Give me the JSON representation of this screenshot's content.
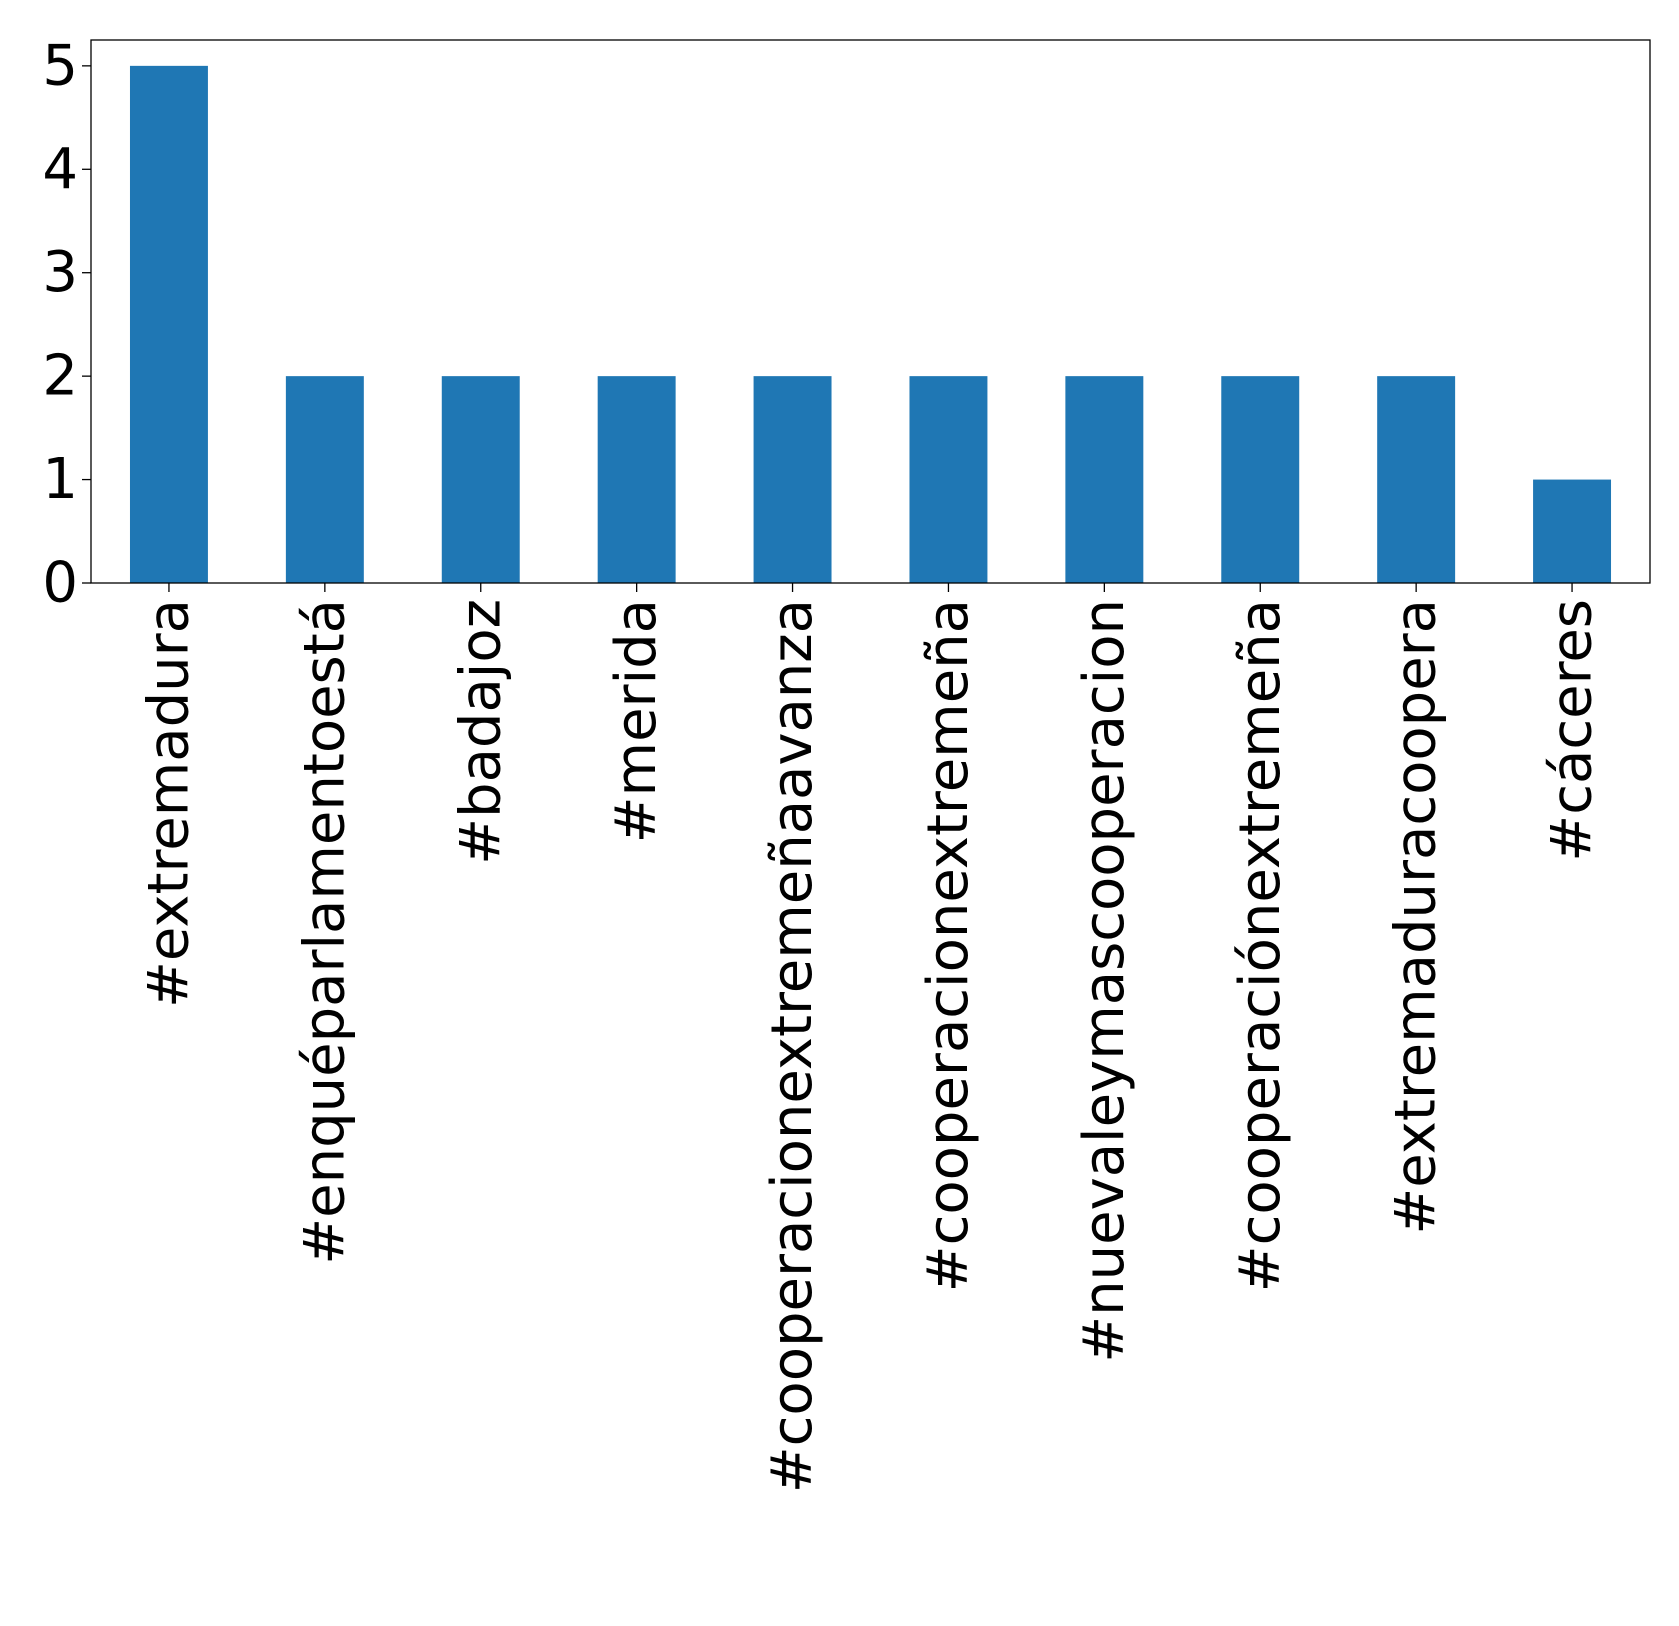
{
  "chart_data": {
    "type": "bar",
    "title": "",
    "xlabel": "",
    "ylabel": "",
    "categories": [
      "#extremadura",
      "#enquéparlamentoestá",
      "#badajoz",
      "#merida",
      "#cooperacionextremeñaavanza",
      "#cooperacionextremeña",
      "#nuevaleymascooperacion",
      "#cooperaciónextremeña",
      "#extremaduracoopera",
      "#cáceres"
    ],
    "values": [
      5,
      2,
      2,
      2,
      2,
      2,
      2,
      2,
      2,
      1
    ],
    "ylim": [
      0,
      5.25
    ],
    "yticks": [
      0,
      1,
      2,
      3,
      4,
      5
    ],
    "grid": false,
    "legend": "none",
    "bar_color": "#1f77b4"
  }
}
